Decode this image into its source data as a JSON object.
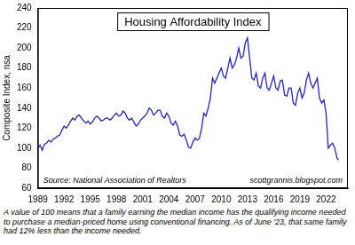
{
  "chart_data": {
    "type": "line",
    "title": "Housing Affordability Index",
    "y_label": "Composite Index, nsa",
    "annotations": [
      "Source: National Association of Realtors",
      "scottgrannis.blogspot.com"
    ],
    "caption": "A value of 100 means that a family earning the median income has the qualifying income needed to purchase a median-priced home using conventional financing. As of June '23, that same family had 12% less than the income needed.",
    "color": "#2323c8",
    "grid": false,
    "xlim": [
      1989,
      2024.5
    ],
    "xticks": [
      1989,
      1992,
      1995,
      1998,
      2001,
      2004,
      2007,
      2010,
      2013,
      2016,
      2019,
      2022
    ],
    "ylim": [
      60,
      240
    ],
    "yticks": [
      60,
      80,
      100,
      120,
      140,
      160,
      180,
      200,
      220,
      240
    ],
    "x": [
      1989,
      1989.25,
      1989.5,
      1989.75,
      1990,
      1990.25,
      1990.5,
      1990.75,
      1991,
      1991.25,
      1991.5,
      1991.75,
      1992,
      1992.25,
      1992.5,
      1992.75,
      1993,
      1993.25,
      1993.5,
      1993.75,
      1994,
      1994.25,
      1994.5,
      1994.75,
      1995,
      1995.25,
      1995.5,
      1995.75,
      1996,
      1996.25,
      1996.5,
      1996.75,
      1997,
      1997.25,
      1997.5,
      1997.75,
      1998,
      1998.25,
      1998.5,
      1998.75,
      1999,
      1999.25,
      1999.5,
      1999.75,
      2000,
      2000.25,
      2000.5,
      2000.75,
      2001,
      2001.25,
      2001.5,
      2001.75,
      2002,
      2002.25,
      2002.5,
      2002.75,
      2003,
      2003.25,
      2003.5,
      2003.75,
      2004,
      2004.25,
      2004.5,
      2004.75,
      2005,
      2005.25,
      2005.5,
      2005.75,
      2006,
      2006.25,
      2006.5,
      2006.75,
      2007,
      2007.25,
      2007.5,
      2007.75,
      2008,
      2008.25,
      2008.5,
      2008.75,
      2009,
      2009.25,
      2009.5,
      2009.75,
      2010,
      2010.25,
      2010.5,
      2010.75,
      2011,
      2011.25,
      2011.5,
      2011.75,
      2012,
      2012.25,
      2012.5,
      2012.75,
      2013,
      2013.25,
      2013.5,
      2013.75,
      2014,
      2014.25,
      2014.5,
      2014.75,
      2015,
      2015.25,
      2015.5,
      2015.75,
      2016,
      2016.25,
      2016.5,
      2016.75,
      2017,
      2017.25,
      2017.5,
      2017.75,
      2018,
      2018.25,
      2018.5,
      2018.75,
      2019,
      2019.25,
      2019.5,
      2019.75,
      2020,
      2020.25,
      2020.5,
      2020.75,
      2021,
      2021.25,
      2021.5,
      2021.75,
      2022,
      2022.25,
      2022.5,
      2022.75,
      2023,
      2023.25,
      2023.42
    ],
    "values": [
      100,
      103,
      98,
      104,
      105,
      108,
      106,
      109,
      110,
      112,
      113,
      118,
      122,
      120,
      123,
      127,
      130,
      128,
      132,
      133,
      130,
      127,
      125,
      127,
      124,
      126,
      130,
      132,
      130,
      127,
      128,
      130,
      130,
      128,
      130,
      133,
      135,
      132,
      133,
      137,
      135,
      130,
      128,
      130,
      126,
      122,
      124,
      128,
      130,
      132,
      135,
      140,
      138,
      133,
      135,
      138,
      138,
      132,
      130,
      135,
      132,
      125,
      123,
      127,
      122,
      113,
      112,
      114,
      108,
      101,
      100,
      106,
      110,
      108,
      110,
      120,
      135,
      132,
      140,
      150,
      170,
      165,
      170,
      175,
      180,
      172,
      170,
      180,
      190,
      180,
      183,
      190,
      200,
      190,
      192,
      205,
      210,
      190,
      170,
      168,
      175,
      162,
      160,
      170,
      175,
      160,
      158,
      165,
      172,
      160,
      158,
      167,
      168,
      153,
      152,
      160,
      160,
      145,
      143,
      155,
      160,
      150,
      155,
      168,
      175,
      165,
      160,
      165,
      170,
      150,
      145,
      148,
      135,
      100,
      103,
      105,
      100,
      90,
      88
    ]
  }
}
